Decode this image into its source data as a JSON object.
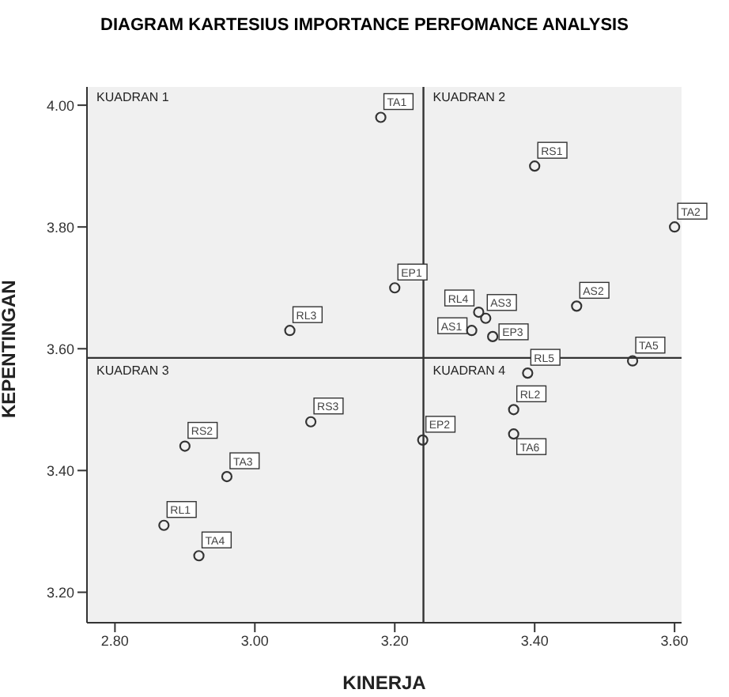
{
  "chart_data": {
    "type": "scatter",
    "title": "DIAGRAM KARTESIUS IMPORTANCE PERFOMANCE ANALYSIS",
    "xlabel": "KINERJA",
    "ylabel": "KEPENTINGAN",
    "annotations": [
      "KUADRAN 1",
      "KUADRAN 2",
      "KUADRAN 3",
      "KUADRAN 4"
    ],
    "series": [
      {
        "color": "#333333",
        "x": [
          3.18,
          3.4,
          3.6,
          3.2,
          3.32,
          3.33,
          3.31,
          3.34,
          3.46,
          3.54,
          3.39,
          3.05,
          3.37,
          3.37,
          3.24,
          3.08,
          2.9,
          2.96,
          2.87,
          2.92
        ],
        "values": [
          3.98,
          3.9,
          3.8,
          3.7,
          3.66,
          3.65,
          3.63,
          3.62,
          3.67,
          3.58,
          3.56,
          3.63,
          3.5,
          3.46,
          3.45,
          3.48,
          3.44,
          3.39,
          3.31,
          3.26
        ],
        "value_labels": [
          "TA1",
          "RS1",
          "TA2",
          "EP1",
          "RL4",
          "AS3",
          "AS1",
          "EP3",
          "AS2",
          "TA5",
          "RL5",
          "RL3",
          "RL2",
          "TA6",
          "EP2",
          "RS3",
          "RS2",
          "TA3",
          "RL1",
          "TA4"
        ]
      }
    ],
    "marker": "circle",
    "grid": false,
    "legend": false,
    "xlim": [
      2.76,
      3.61
    ],
    "xticks": [
      {
        "value": 2.8,
        "label": "2.80"
      },
      {
        "value": 3.0,
        "label": "3.00"
      },
      {
        "value": 3.2,
        "label": "3.20"
      },
      {
        "value": 3.4,
        "label": "3.40"
      },
      {
        "value": 3.6,
        "label": "3.60"
      }
    ],
    "ylim": [
      3.15,
      4.03
    ],
    "yticks": [
      {
        "value": 3.2,
        "label": "3.20"
      },
      {
        "value": 3.4,
        "label": "3.40"
      },
      {
        "value": 3.6,
        "label": "3.60"
      },
      {
        "value": 3.8,
        "label": "3.80"
      },
      {
        "value": 4.0,
        "label": "4.00"
      }
    ],
    "ref_lines": [
      {
        "axis": "x",
        "value": 3.241,
        "color": "#333333"
      },
      {
        "axis": "y",
        "value": 3.585,
        "color": "#333333"
      }
    ]
  }
}
